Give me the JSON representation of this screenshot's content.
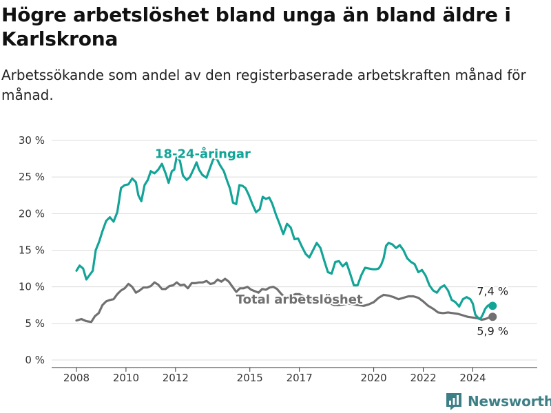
{
  "header": {
    "title": "Högre arbetslöshet bland unga än bland äldre i Karlskrona",
    "subtitle": "Arbetssökande som andel av den registerbaserade arbetskraften månad för månad."
  },
  "brand": {
    "name": "Newsworthy",
    "icon": "bar-chart-logo-icon",
    "color": "#3d7f86"
  },
  "chart_data": {
    "type": "line",
    "title": "",
    "xlabel": "",
    "ylabel": "",
    "xlim": [
      2007.0,
      2026.6
    ],
    "ylim": [
      0,
      30
    ],
    "grid": "horizontal",
    "legend": "none",
    "x_ticks": [
      {
        "value": 2008,
        "label": "2008"
      },
      {
        "value": 2010,
        "label": "2010"
      },
      {
        "value": 2012,
        "label": "2012"
      },
      {
        "value": 2015,
        "label": "2015"
      },
      {
        "value": 2017,
        "label": "2017"
      },
      {
        "value": 2020,
        "label": "2020"
      },
      {
        "value": 2022,
        "label": "2022"
      },
      {
        "value": 2024,
        "label": "2024"
      }
    ],
    "y_ticks": [
      {
        "value": 0,
        "label": "0 %"
      },
      {
        "value": 5,
        "label": "5 %"
      },
      {
        "value": 10,
        "label": "10 %"
      },
      {
        "value": 15,
        "label": "15 %"
      },
      {
        "value": 20,
        "label": "20 %"
      },
      {
        "value": 25,
        "label": "25 %"
      },
      {
        "value": 30,
        "label": "30 %"
      }
    ],
    "series": [
      {
        "name": "18-24-åringar",
        "color": "#12a497",
        "label_x": 2013.1,
        "label_y": 27.6,
        "end_label": "7,4 %",
        "x": [
          2008.0,
          2008.13,
          2008.27,
          2008.4,
          2008.53,
          2008.66,
          2008.78,
          2008.92,
          2009.05,
          2009.2,
          2009.35,
          2009.5,
          2009.65,
          2009.8,
          2009.95,
          2010.1,
          2010.25,
          2010.4,
          2010.5,
          2010.62,
          2010.75,
          2010.88,
          2011.0,
          2011.15,
          2011.3,
          2011.45,
          2011.6,
          2011.72,
          2011.85,
          2011.95,
          2012.05,
          2012.18,
          2012.3,
          2012.45,
          2012.58,
          2012.72,
          2012.85,
          2012.95,
          2013.08,
          2013.25,
          2013.4,
          2013.52,
          2013.65,
          2013.8,
          2013.95,
          2014.08,
          2014.2,
          2014.32,
          2014.45,
          2014.58,
          2014.7,
          2014.82,
          2014.95,
          2015.1,
          2015.25,
          2015.4,
          2015.52,
          2015.65,
          2015.78,
          2015.9,
          2016.05,
          2016.2,
          2016.35,
          2016.5,
          2016.65,
          2016.8,
          2016.95,
          2017.1,
          2017.25,
          2017.4,
          2017.55,
          2017.7,
          2017.85,
          2018.0,
          2018.15,
          2018.3,
          2018.45,
          2018.6,
          2018.75,
          2018.9,
          2019.05,
          2019.2,
          2019.35,
          2019.5,
          2019.65,
          2019.8,
          2019.95,
          2020.1,
          2020.2,
          2020.3,
          2020.4,
          2020.5,
          2020.6,
          2020.75,
          2020.9,
          2021.05,
          2021.2,
          2021.35,
          2021.5,
          2021.65,
          2021.8,
          2021.95,
          2022.1,
          2022.25,
          2022.4,
          2022.55,
          2022.7,
          2022.85,
          2023.0,
          2023.15,
          2023.3,
          2023.45,
          2023.6,
          2023.75,
          2023.9,
          2024.0,
          2024.1,
          2024.2,
          2024.3,
          2024.4,
          2024.5,
          2024.6,
          2024.7,
          2024.8
        ],
        "y": [
          12.2,
          12.9,
          12.5,
          11.0,
          11.6,
          12.2,
          15.0,
          16.2,
          17.6,
          19.0,
          19.5,
          18.9,
          20.2,
          23.5,
          23.9,
          24.0,
          24.8,
          24.3,
          22.5,
          21.7,
          23.9,
          24.6,
          25.8,
          25.5,
          26.0,
          26.8,
          25.5,
          24.2,
          25.8,
          26.0,
          27.8,
          27.2,
          25.2,
          24.6,
          25.0,
          26.0,
          27.0,
          26.0,
          25.3,
          24.9,
          26.3,
          27.4,
          27.6,
          26.6,
          25.8,
          24.5,
          23.4,
          21.5,
          21.3,
          23.9,
          23.8,
          23.5,
          22.6,
          21.3,
          20.2,
          20.6,
          22.3,
          22.0,
          22.2,
          21.4,
          19.9,
          18.6,
          17.2,
          18.6,
          18.1,
          16.5,
          16.6,
          15.5,
          14.5,
          14.0,
          15.0,
          16.0,
          15.3,
          13.6,
          12.0,
          11.8,
          13.4,
          13.5,
          12.8,
          13.3,
          11.8,
          10.2,
          10.2,
          11.6,
          12.6,
          12.5,
          12.4,
          12.4,
          12.5,
          13.0,
          13.9,
          15.6,
          16.0,
          15.8,
          15.3,
          15.7,
          15.0,
          13.9,
          13.4,
          13.1,
          12.0,
          12.3,
          11.5,
          10.2,
          9.5,
          9.2,
          9.9,
          10.2,
          9.5,
          8.2,
          7.9,
          7.3,
          8.3,
          8.6,
          8.3,
          7.7,
          6.2,
          5.8,
          5.6,
          6.2,
          7.0,
          7.4,
          7.6,
          7.4
        ]
      },
      {
        "name": "Total arbetslöshet",
        "color": "#707070",
        "label_x": 2017.0,
        "label_y": 7.7,
        "end_label": "5,9 %",
        "x": [
          2008.0,
          2008.2,
          2008.4,
          2008.6,
          2008.75,
          2008.9,
          2009.05,
          2009.2,
          2009.35,
          2009.5,
          2009.65,
          2009.8,
          2009.95,
          2010.1,
          2010.25,
          2010.4,
          2010.55,
          2010.7,
          2010.85,
          2011.0,
          2011.15,
          2011.3,
          2011.45,
          2011.6,
          2011.75,
          2011.9,
          2012.05,
          2012.2,
          2012.35,
          2012.5,
          2012.65,
          2012.8,
          2012.95,
          2013.1,
          2013.25,
          2013.4,
          2013.55,
          2013.7,
          2013.85,
          2014.0,
          2014.15,
          2014.3,
          2014.45,
          2014.6,
          2014.75,
          2014.9,
          2015.05,
          2015.2,
          2015.35,
          2015.5,
          2015.65,
          2015.8,
          2015.95,
          2016.1,
          2016.25,
          2016.4,
          2016.55,
          2016.7,
          2016.85,
          2017.0,
          2017.2,
          2017.4,
          2017.6,
          2017.8,
          2018.0,
          2018.2,
          2018.4,
          2018.6,
          2018.8,
          2019.0,
          2019.2,
          2019.4,
          2019.6,
          2019.8,
          2020.0,
          2020.2,
          2020.4,
          2020.6,
          2020.8,
          2021.0,
          2021.2,
          2021.4,
          2021.6,
          2021.8,
          2022.0,
          2022.2,
          2022.4,
          2022.6,
          2022.8,
          2023.0,
          2023.2,
          2023.4,
          2023.6,
          2023.8,
          2024.0,
          2024.2,
          2024.35,
          2024.5,
          2024.65,
          2024.8
        ],
        "y": [
          5.4,
          5.6,
          5.3,
          5.2,
          6.0,
          6.4,
          7.5,
          8.0,
          8.2,
          8.3,
          9.0,
          9.5,
          9.8,
          10.4,
          10.0,
          9.2,
          9.5,
          9.9,
          9.9,
          10.1,
          10.6,
          10.3,
          9.7,
          9.7,
          10.1,
          10.2,
          10.6,
          10.2,
          10.3,
          9.8,
          10.5,
          10.5,
          10.6,
          10.6,
          10.8,
          10.4,
          10.5,
          11.0,
          10.7,
          11.1,
          10.7,
          10.0,
          9.3,
          9.8,
          9.8,
          10.0,
          9.6,
          9.4,
          9.2,
          9.7,
          9.6,
          9.9,
          10.0,
          9.7,
          9.1,
          8.6,
          8.7,
          8.8,
          9.0,
          9.0,
          8.6,
          8.3,
          8.0,
          7.9,
          7.8,
          7.8,
          7.5,
          7.5,
          7.6,
          7.7,
          7.6,
          7.5,
          7.4,
          7.6,
          7.9,
          8.5,
          8.9,
          8.8,
          8.6,
          8.3,
          8.5,
          8.7,
          8.7,
          8.5,
          8.0,
          7.4,
          7.0,
          6.5,
          6.4,
          6.5,
          6.4,
          6.3,
          6.1,
          5.9,
          5.8,
          5.7,
          5.5,
          5.6,
          5.8,
          5.9
        ]
      }
    ]
  }
}
